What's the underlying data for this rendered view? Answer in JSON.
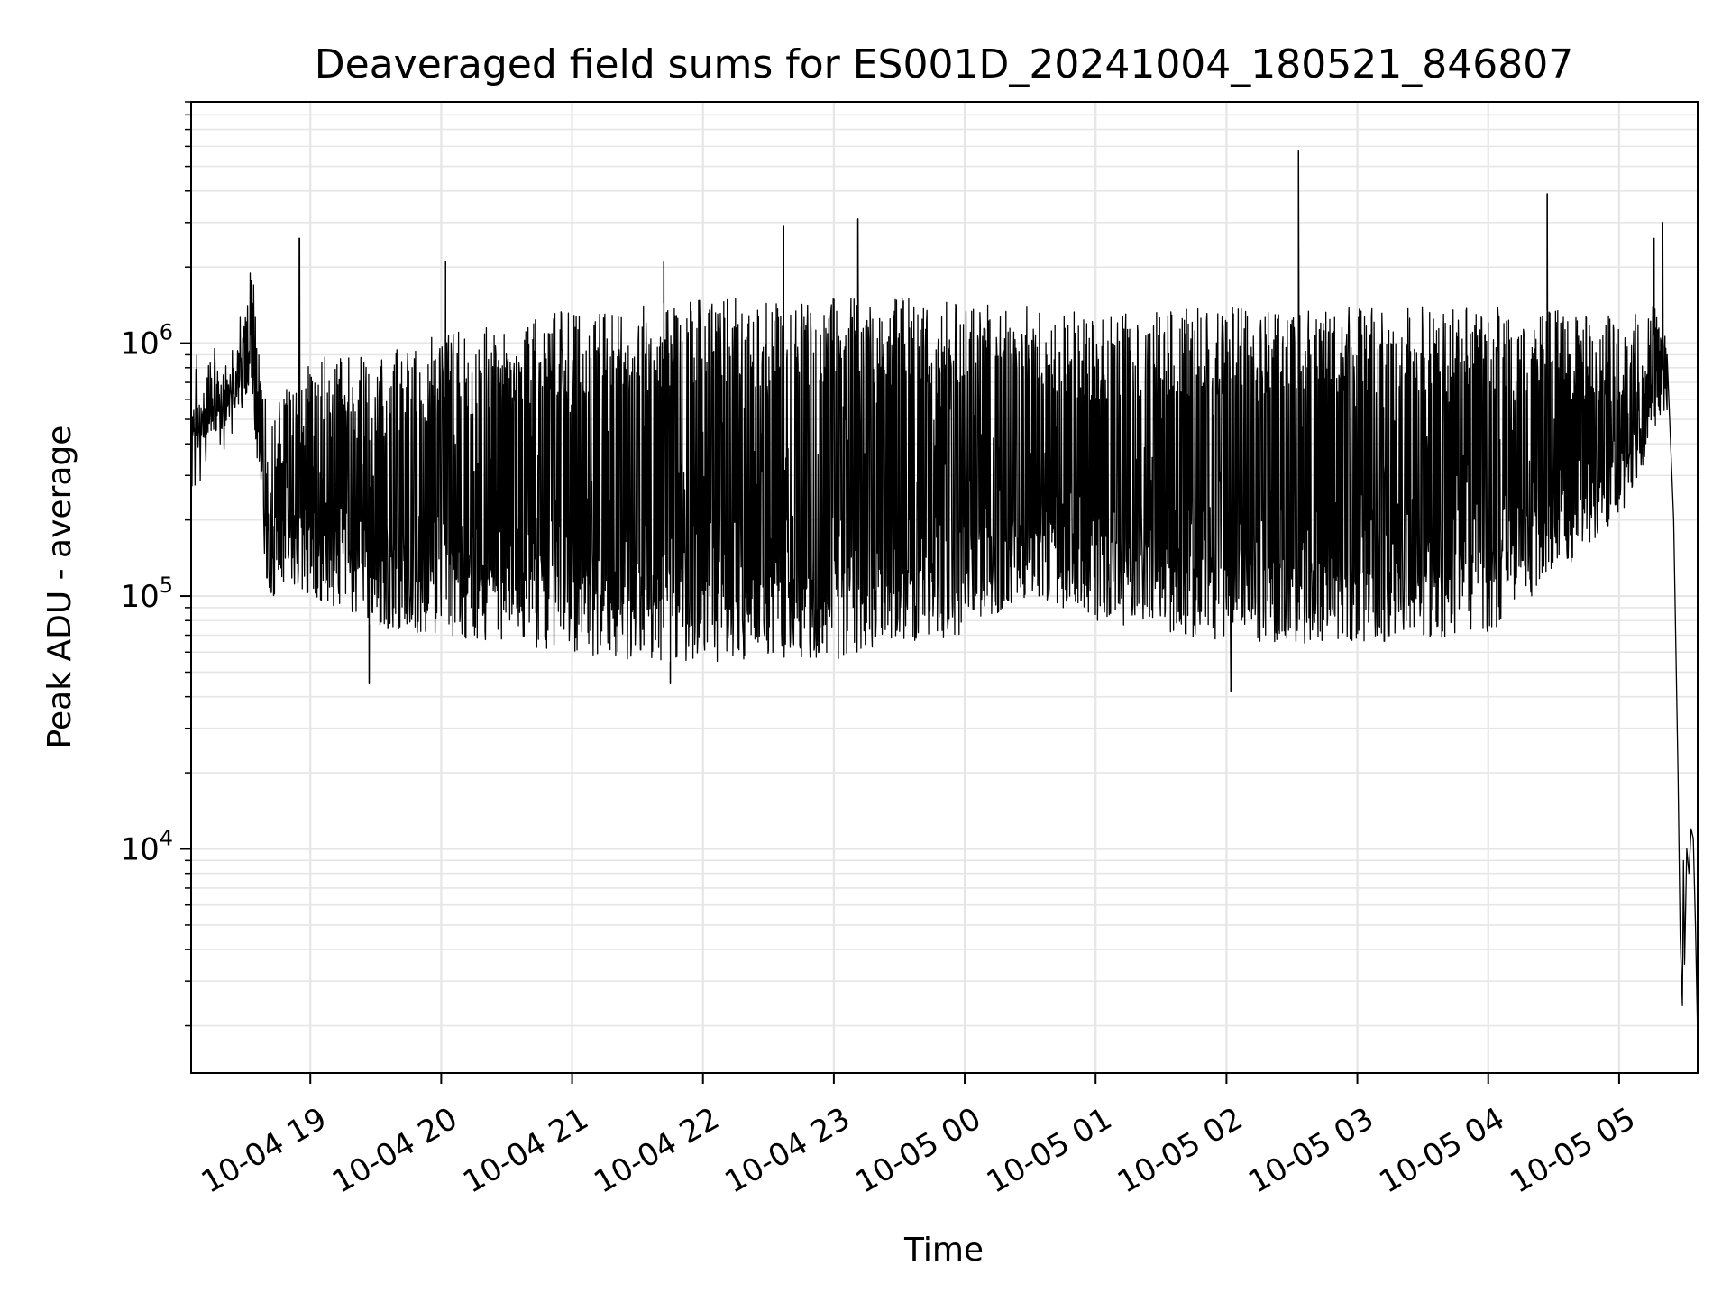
{
  "chart_data": {
    "type": "line",
    "title": "Deaveraged field sums for ES001D_20241004_180521_846807",
    "xlabel": "Time",
    "ylabel": "Peak ADU - average",
    "xlim": [
      "2024-10-04T18:05:21",
      "2024-10-05T05:36:00"
    ],
    "x_ticks": [
      {
        "t": "2024-10-04T19:00:00",
        "label": "10-04 19"
      },
      {
        "t": "2024-10-04T20:00:00",
        "label": "10-04 20"
      },
      {
        "t": "2024-10-04T21:00:00",
        "label": "10-04 21"
      },
      {
        "t": "2024-10-04T22:00:00",
        "label": "10-04 22"
      },
      {
        "t": "2024-10-04T23:00:00",
        "label": "10-04 23"
      },
      {
        "t": "2024-10-05T00:00:00",
        "label": "10-05 00"
      },
      {
        "t": "2024-10-05T01:00:00",
        "label": "10-05 01"
      },
      {
        "t": "2024-10-05T02:00:00",
        "label": "10-05 02"
      },
      {
        "t": "2024-10-05T03:00:00",
        "label": "10-05 03"
      },
      {
        "t": "2024-10-05T04:00:00",
        "label": "10-05 04"
      },
      {
        "t": "2024-10-05T05:00:00",
        "label": "10-05 05"
      }
    ],
    "y_scale": "log",
    "ylim": [
      1300,
      9000000
    ],
    "y_ticks": [
      {
        "value": 10000,
        "base": "10",
        "exp": "4"
      },
      {
        "value": 100000,
        "base": "10",
        "exp": "5"
      },
      {
        "value": 1000000,
        "base": "10",
        "exp": "6"
      }
    ],
    "grid": true,
    "grid_minor_y": true,
    "line_color": "#000000",
    "grid_color": "#e6e6e6",
    "series": [
      {
        "envelope": [
          {
            "t": "2024-10-04T18:05:21",
            "low": 400000,
            "high": 550000
          },
          {
            "t": "2024-10-04T18:20:00",
            "low": 450000,
            "high": 800000
          },
          {
            "t": "2024-10-04T18:25:00",
            "low": 550000,
            "high": 900000
          },
          {
            "t": "2024-10-04T18:30:00",
            "low": 600000,
            "high": 1200000
          },
          {
            "t": "2024-10-04T18:33:00",
            "low": 700000,
            "high": 2300000
          },
          {
            "t": "2024-10-04T18:40:00",
            "low": 100000,
            "high": 600000
          },
          {
            "t": "2024-10-04T19:00:00",
            "low": 100000,
            "high": 900000
          },
          {
            "t": "2024-10-04T19:30:00",
            "low": 75000,
            "high": 900000
          },
          {
            "t": "2024-10-04T20:00:00",
            "low": 70000,
            "high": 1100000
          },
          {
            "t": "2024-10-04T20:30:00",
            "low": 65000,
            "high": 1200000
          },
          {
            "t": "2024-10-04T21:00:00",
            "low": 60000,
            "high": 1400000
          },
          {
            "t": "2024-10-04T21:30:00",
            "low": 55000,
            "high": 1400000
          },
          {
            "t": "2024-10-04T22:00:00",
            "low": 55000,
            "high": 1500000
          },
          {
            "t": "2024-10-04T23:00:00",
            "low": 55000,
            "high": 1500000
          },
          {
            "t": "2024-10-05T00:00:00",
            "low": 70000,
            "high": 1500000
          },
          {
            "t": "2024-10-05T00:30:00",
            "low": 100000,
            "high": 1400000
          },
          {
            "t": "2024-10-05T01:00:00",
            "low": 80000,
            "high": 1300000
          },
          {
            "t": "2024-10-05T02:00:00",
            "low": 65000,
            "high": 1400000
          },
          {
            "t": "2024-10-05T03:00:00",
            "low": 65000,
            "high": 1400000
          },
          {
            "t": "2024-10-05T04:00:00",
            "low": 70000,
            "high": 1400000
          },
          {
            "t": "2024-10-05T05:00:00",
            "low": 200000,
            "high": 1300000
          },
          {
            "t": "2024-10-05T05:20:00",
            "low": 500000,
            "high": 1500000
          },
          {
            "t": "2024-10-05T05:22:00",
            "low": 500000,
            "high": 1000000
          }
        ],
        "spikes": [
          {
            "t": "2024-10-04T18:55:00",
            "value": 2600000
          },
          {
            "t": "2024-10-04T20:02:00",
            "value": 2100000
          },
          {
            "t": "2024-10-04T21:42:00",
            "value": 2100000
          },
          {
            "t": "2024-10-04T22:37:00",
            "value": 2900000
          },
          {
            "t": "2024-10-04T23:11:00",
            "value": 3100000
          },
          {
            "t": "2024-10-05T02:33:00",
            "value": 5800000
          },
          {
            "t": "2024-10-05T04:27:00",
            "value": 3900000
          },
          {
            "t": "2024-10-05T05:16:00",
            "value": 2600000
          },
          {
            "t": "2024-10-05T05:20:00",
            "value": 3000000
          }
        ],
        "dips": [
          {
            "t": "2024-10-04T19:27:00",
            "value": 45000
          },
          {
            "t": "2024-10-04T21:45:00",
            "value": 45000
          },
          {
            "t": "2024-10-05T02:02:00",
            "value": 42000
          }
        ],
        "tail": [
          {
            "t": "2024-10-05T05:22:00",
            "value": 900000
          },
          {
            "t": "2024-10-05T05:25:00",
            "value": 200000
          },
          {
            "t": "2024-10-05T05:27:00",
            "value": 20000
          },
          {
            "t": "2024-10-05T05:28:00",
            "value": 4500
          },
          {
            "t": "2024-10-05T05:29:00",
            "value": 2400
          },
          {
            "t": "2024-10-05T05:29:30",
            "value": 9000
          },
          {
            "t": "2024-10-05T05:30:00",
            "value": 3500
          },
          {
            "t": "2024-10-05T05:31:00",
            "value": 10000
          },
          {
            "t": "2024-10-05T05:32:00",
            "value": 8000
          },
          {
            "t": "2024-10-05T05:33:00",
            "value": 12000
          },
          {
            "t": "2024-10-05T05:34:00",
            "value": 11000
          },
          {
            "t": "2024-10-05T05:35:00",
            "value": 5000
          },
          {
            "t": "2024-10-05T05:36:00",
            "value": 1800
          }
        ]
      }
    ]
  }
}
